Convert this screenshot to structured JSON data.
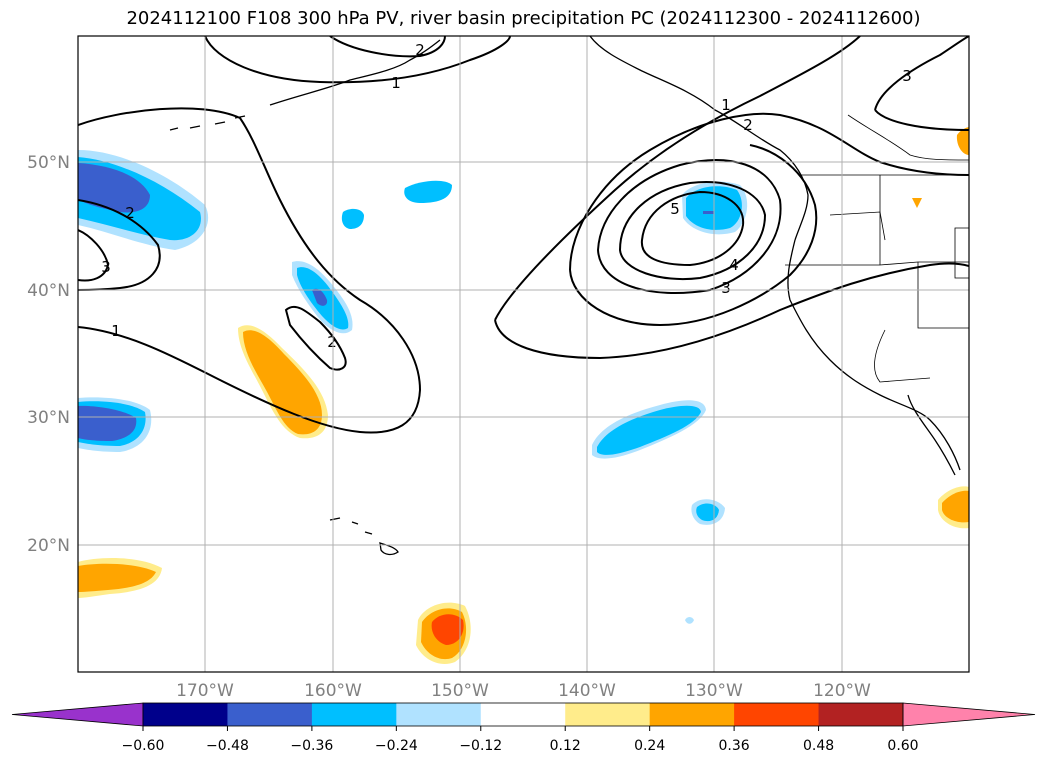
{
  "title": "2024112100 F108 300 hPa PV, river basin precipitation PC (2024112300 - 2024112600)",
  "lat_labels": [
    "50°N",
    "40°N",
    "30°N",
    "20°N"
  ],
  "lon_labels": [
    "170°W",
    "160°W",
    "150°W",
    "140°W",
    "130°W",
    "120°W"
  ],
  "contour_labels": [
    "2",
    "1",
    "2",
    "3",
    "1",
    "2",
    "2",
    "1",
    "5",
    "4",
    "3",
    "3"
  ],
  "colorbar": {
    "ticks": [
      "−0.60",
      "−0.48",
      "−0.36",
      "−0.24",
      "−0.12",
      "0.12",
      "0.24",
      "0.36",
      "0.48",
      "0.60"
    ],
    "colors": [
      "#9932cc",
      "#00008b",
      "#3a5fcd",
      "#00bfff",
      "#b0e2ff",
      "#ffffff",
      "#ffec8b",
      "#ffa500",
      "#ff4500",
      "#b22222",
      "#ff82ab"
    ]
  }
}
